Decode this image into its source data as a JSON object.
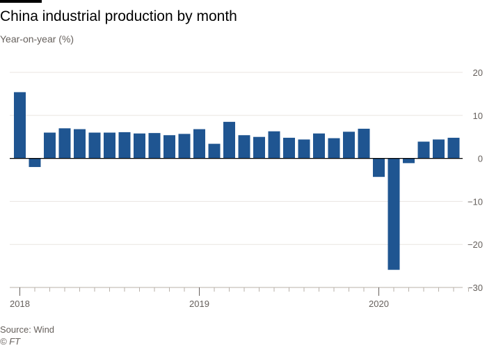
{
  "header": {
    "title": "China industrial production by month",
    "subtitle": "Year-on-year (%)"
  },
  "footer": {
    "source": "Source: Wind",
    "credit": "© FT"
  },
  "colors": {
    "bar": "#1f5591",
    "grid": "#e9e5e0",
    "zero_line": "#000000",
    "axis_text": "#66605c"
  },
  "chart_data": {
    "type": "bar",
    "title": "China industrial production by month",
    "ylabel": "Year-on-year (%)",
    "ylim": [
      -30,
      20
    ],
    "yticks": [
      20,
      10,
      0,
      -10,
      -20,
      -30
    ],
    "grid": true,
    "y_axis_side": "right",
    "x_tick_labels": [
      {
        "index": 0,
        "label": "2018"
      },
      {
        "index": 12,
        "label": "2019"
      },
      {
        "index": 24,
        "label": "2020"
      }
    ],
    "categories": [
      "2018-01",
      "2018-02",
      "2018-03",
      "2018-04",
      "2018-05",
      "2018-06",
      "2018-07",
      "2018-08",
      "2018-09",
      "2018-10",
      "2018-11",
      "2018-12",
      "2019-01",
      "2019-02",
      "2019-03",
      "2019-04",
      "2019-05",
      "2019-06",
      "2019-07",
      "2019-08",
      "2019-09",
      "2019-10",
      "2019-11",
      "2019-12",
      "2020-01",
      "2020-02",
      "2020-03",
      "2020-04",
      "2020-05",
      "2020-06"
    ],
    "values": [
      15.4,
      -2.0,
      6.0,
      7.0,
      6.8,
      6.0,
      6.0,
      6.1,
      5.8,
      5.9,
      5.4,
      5.7,
      6.8,
      3.4,
      8.5,
      5.4,
      5.0,
      6.3,
      4.8,
      4.4,
      5.8,
      4.7,
      6.2,
      6.9,
      -4.3,
      -25.9,
      -1.1,
      3.9,
      4.4,
      4.8
    ]
  }
}
